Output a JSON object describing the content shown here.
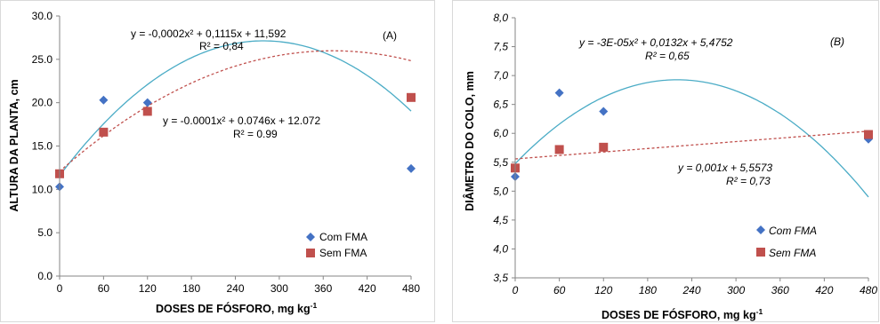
{
  "chart_data": [
    {
      "type": "scatter",
      "panel_label": "(A)",
      "xlabel": "DOSES DE FÓSFORO, mg kg",
      "xlabel_sup": "-1",
      "ylabel": "ALTURA DA PLANTA, cm",
      "xlim": [
        0,
        480
      ],
      "ylim": [
        0,
        30
      ],
      "x_ticks": [
        "0",
        "60",
        "120",
        "180",
        "240",
        "300",
        "360",
        "420",
        "480"
      ],
      "y_ticks": [
        "0.0",
        "5.0",
        "10.0",
        "15.0",
        "20.0",
        "25.0",
        "30.0"
      ],
      "italic_ticks": false,
      "grid": false,
      "legend_position": "bottom-right",
      "legend_italic": false,
      "series": [
        {
          "name": "Com FMA",
          "marker": "diamond",
          "color": "#4472C4",
          "x": [
            0,
            60,
            120,
            480
          ],
          "y": [
            10.3,
            20.3,
            20.0,
            12.4
          ],
          "trend": {
            "type": "poly2",
            "coef": [
              -0.0002,
              0.1115,
              11.592
            ],
            "color": "#4BACC6",
            "dash": false
          },
          "equation": "y = -0,0002x² + 0,1115x + 11,592",
          "r2": "R² = 0,84"
        },
        {
          "name": "Sem FMA",
          "marker": "square",
          "color": "#C0504D",
          "x": [
            0,
            60,
            120,
            480
          ],
          "y": [
            11.8,
            16.6,
            19.0,
            20.6
          ],
          "trend": {
            "type": "poly2",
            "coef": [
              -0.0001,
              0.0746,
              12.072
            ],
            "color": "#C0504D",
            "dash": true
          },
          "equation": "y = -0.0001x² + 0.0746x + 12.072",
          "r2": "R² = 0.99"
        }
      ]
    },
    {
      "type": "scatter",
      "panel_label": "(B)",
      "xlabel": "DOSES DE FÓSFORO, mg kg",
      "xlabel_sup": "-1",
      "ylabel": "DIÂMETRO DO COLO, mm",
      "xlim": [
        0,
        480
      ],
      "ylim": [
        3.5,
        8.0
      ],
      "x_ticks": [
        "0",
        "60",
        "120",
        "180",
        "240",
        "300",
        "360",
        "420",
        "480"
      ],
      "y_ticks": [
        "3,5",
        "4,0",
        "4,5",
        "5,0",
        "5,5",
        "6,0",
        "6,5",
        "7,0",
        "7,5",
        "8,0"
      ],
      "italic_ticks": true,
      "grid": false,
      "legend_position": "bottom-right",
      "legend_italic": true,
      "series": [
        {
          "name": "Com FMA",
          "marker": "diamond",
          "color": "#4472C4",
          "x": [
            0,
            60,
            120,
            480
          ],
          "y": [
            5.25,
            6.7,
            6.38,
            5.9
          ],
          "trend": {
            "type": "poly2",
            "coef": [
              -3e-05,
              0.0132,
              5.4752
            ],
            "color": "#4BACC6",
            "dash": false
          },
          "equation": "y = -3E-05x² + 0,0132x + 5,4752",
          "r2": "R² = 0,65"
        },
        {
          "name": "Sem FMA",
          "marker": "square",
          "color": "#C0504D",
          "x": [
            0,
            60,
            120,
            480
          ],
          "y": [
            5.4,
            5.72,
            5.76,
            5.98
          ],
          "trend": {
            "type": "linear",
            "coef": [
              0.001,
              5.5573
            ],
            "color": "#C0504D",
            "dash": true
          },
          "equation": "y = 0,001x + 5,5573",
          "r2": "R² = 0,73"
        }
      ]
    }
  ]
}
